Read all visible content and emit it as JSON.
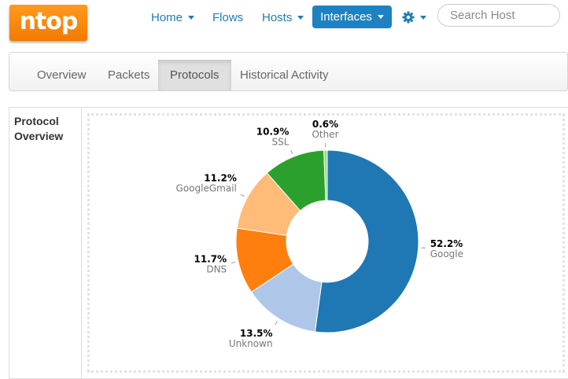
{
  "logo": {
    "text": "ntop"
  },
  "nav": {
    "home": "Home",
    "flows": "Flows",
    "hosts": "Hosts",
    "interfaces": "Interfaces"
  },
  "search": {
    "placeholder": "Search Host",
    "value": ""
  },
  "tabs": [
    "Overview",
    "Packets",
    "Protocols",
    "Historical Activity"
  ],
  "active_tab": "Protocols",
  "panel": {
    "label_line1": "Protocol",
    "label_line2": "Overview"
  },
  "colors": {
    "accent": "#1d82c0",
    "link": "#1f7bb5",
    "logo": "#f58220"
  },
  "chart_data": {
    "type": "pie",
    "donut": true,
    "slices": [
      {
        "name": "Google",
        "value": 52.2,
        "label": "52.2%",
        "color": "#1f77b4"
      },
      {
        "name": "Unknown",
        "value": 13.5,
        "label": "13.5%",
        "color": "#aec7e8"
      },
      {
        "name": "DNS",
        "value": 11.7,
        "label": "11.7%",
        "color": "#ff7f0e"
      },
      {
        "name": "GoogleGmail",
        "value": 11.2,
        "label": "11.2%",
        "color": "#ffbb78"
      },
      {
        "name": "SSL",
        "value": 10.9,
        "label": "10.9%",
        "color": "#2ca02c"
      },
      {
        "name": "Other",
        "value": 0.6,
        "label": "0.6%",
        "color": "#98df8a"
      }
    ]
  }
}
